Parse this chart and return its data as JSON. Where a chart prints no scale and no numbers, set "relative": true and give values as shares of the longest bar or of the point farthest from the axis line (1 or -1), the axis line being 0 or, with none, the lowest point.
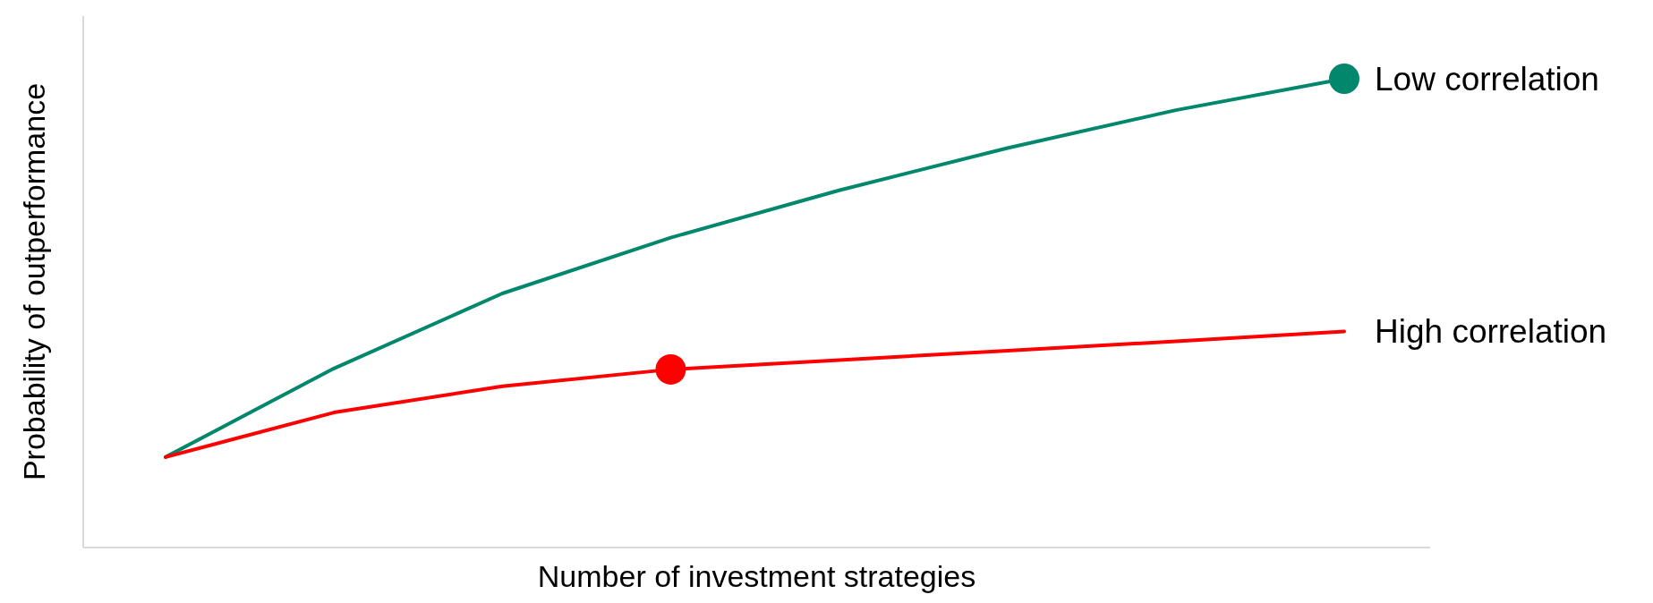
{
  "chart_data": {
    "type": "line",
    "xlabel": "Number of investment strategies",
    "ylabel": "Probability of outperformance",
    "relative": true,
    "legend": "right",
    "categories": [
      null,
      null,
      null,
      null,
      null,
      null,
      null,
      null
    ],
    "series": [
      {
        "name": "Low correlation",
        "color": "#00876c",
        "values": [
          0.193,
          0.382,
          0.542,
          0.661,
          0.762,
          0.852,
          0.933,
          1
        ]
      },
      {
        "name": "High correlation",
        "color": "#ff0000",
        "values": [
          0.193,
          0.288,
          0.344,
          0.38,
          0.4,
          0.42,
          0.44,
          0.461
        ]
      },
      {
        "color": "#00876c",
        "marker": "circle",
        "values": [
          null,
          null,
          null,
          null,
          null,
          null,
          null,
          1
        ]
      },
      {
        "color": "#ff0000",
        "marker": "circle",
        "values": [
          null,
          null,
          null,
          0.38,
          null,
          null,
          null,
          null
        ]
      }
    ]
  }
}
